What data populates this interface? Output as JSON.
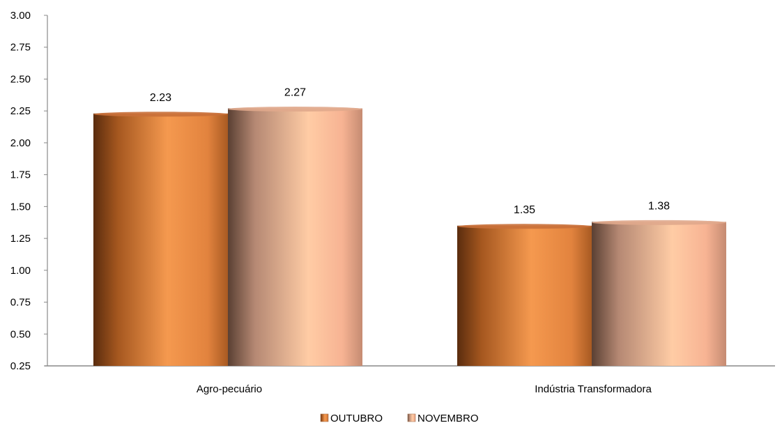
{
  "chart_data": {
    "type": "bar",
    "categories": [
      "Agro-pecuário",
      "Indústria Transformadora"
    ],
    "series": [
      {
        "name": "OUTUBRO",
        "values": [
          2.23,
          1.35
        ],
        "color": "#F0934C"
      },
      {
        "name": "NOVEMBRO",
        "values": [
          2.27,
          1.38
        ],
        "color": "#F9B998"
      }
    ],
    "data_labels": [
      "2.23",
      "2.27",
      "1.35",
      "1.38"
    ],
    "ylim": [
      0.25,
      3.0
    ],
    "yticks": [
      "0.25",
      "0.50",
      "0.75",
      "1.00",
      "1.25",
      "1.50",
      "1.75",
      "2.00",
      "2.25",
      "2.50",
      "2.75",
      "3.00"
    ],
    "grid": false,
    "legend_position": "bottom",
    "title": "",
    "xlabel": "",
    "ylabel": ""
  }
}
